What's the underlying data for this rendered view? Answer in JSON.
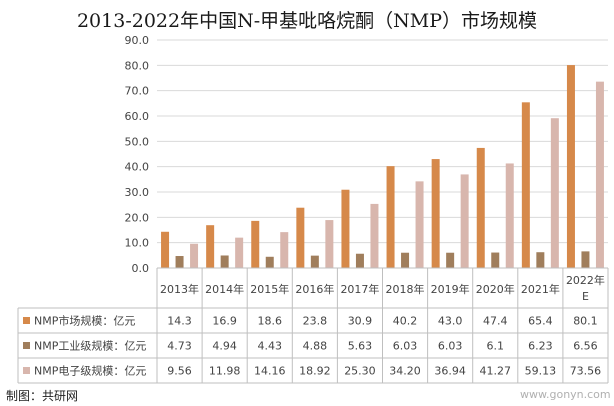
{
  "title": "2013-2022年中国N-甲基吡咯烷酮（NMP）市场规模",
  "source": "制图：共研网",
  "watermark": "www.gonyn.com",
  "colors": {
    "market": "#d6894a",
    "industrial": "#a07e5c",
    "electronic": "#d8b6ad",
    "grid": "#d9d9d9",
    "axis_text": "#444444"
  },
  "chart_data": {
    "type": "bar",
    "title": "2013-2022年中国N-甲基吡咯烷酮（NMP）市场规模",
    "ylim": [
      0,
      90
    ],
    "yticks": [
      "0.0",
      "10.0",
      "20.0",
      "30.0",
      "40.0",
      "50.0",
      "60.0",
      "70.0",
      "80.0",
      "90.0"
    ],
    "categories": [
      "2013年",
      "2014年",
      "2015年",
      "2016年",
      "2017年",
      "2018年",
      "2019年",
      "2020年",
      "2021年",
      "2022年E"
    ],
    "series": [
      {
        "name": "NMP市场规模：亿元",
        "values": [
          14.3,
          16.9,
          18.6,
          23.8,
          30.9,
          40.2,
          43.0,
          47.4,
          65.4,
          80.1
        ],
        "labels": [
          "14.3",
          "16.9",
          "18.6",
          "23.8",
          "30.9",
          "40.2",
          "43.0",
          "47.4",
          "65.4",
          "80.1"
        ]
      },
      {
        "name": "NMP工业级规模：亿元",
        "values": [
          4.73,
          4.94,
          4.43,
          4.88,
          5.63,
          6.03,
          6.03,
          6.1,
          6.23,
          6.56
        ],
        "labels": [
          "4.73",
          "4.94",
          "4.43",
          "4.88",
          "5.63",
          "6.03",
          "6.03",
          "6.1",
          "6.23",
          "6.56"
        ]
      },
      {
        "name": "NMP电子级规模：亿元",
        "values": [
          9.56,
          11.98,
          14.16,
          18.92,
          25.3,
          34.2,
          36.94,
          41.27,
          59.13,
          73.56
        ],
        "labels": [
          "9.56",
          "11.98",
          "14.16",
          "18.92",
          "25.30",
          "34.20",
          "36.94",
          "41.27",
          "59.13",
          "73.56"
        ]
      }
    ],
    "grid": true,
    "legend": "data-table"
  }
}
